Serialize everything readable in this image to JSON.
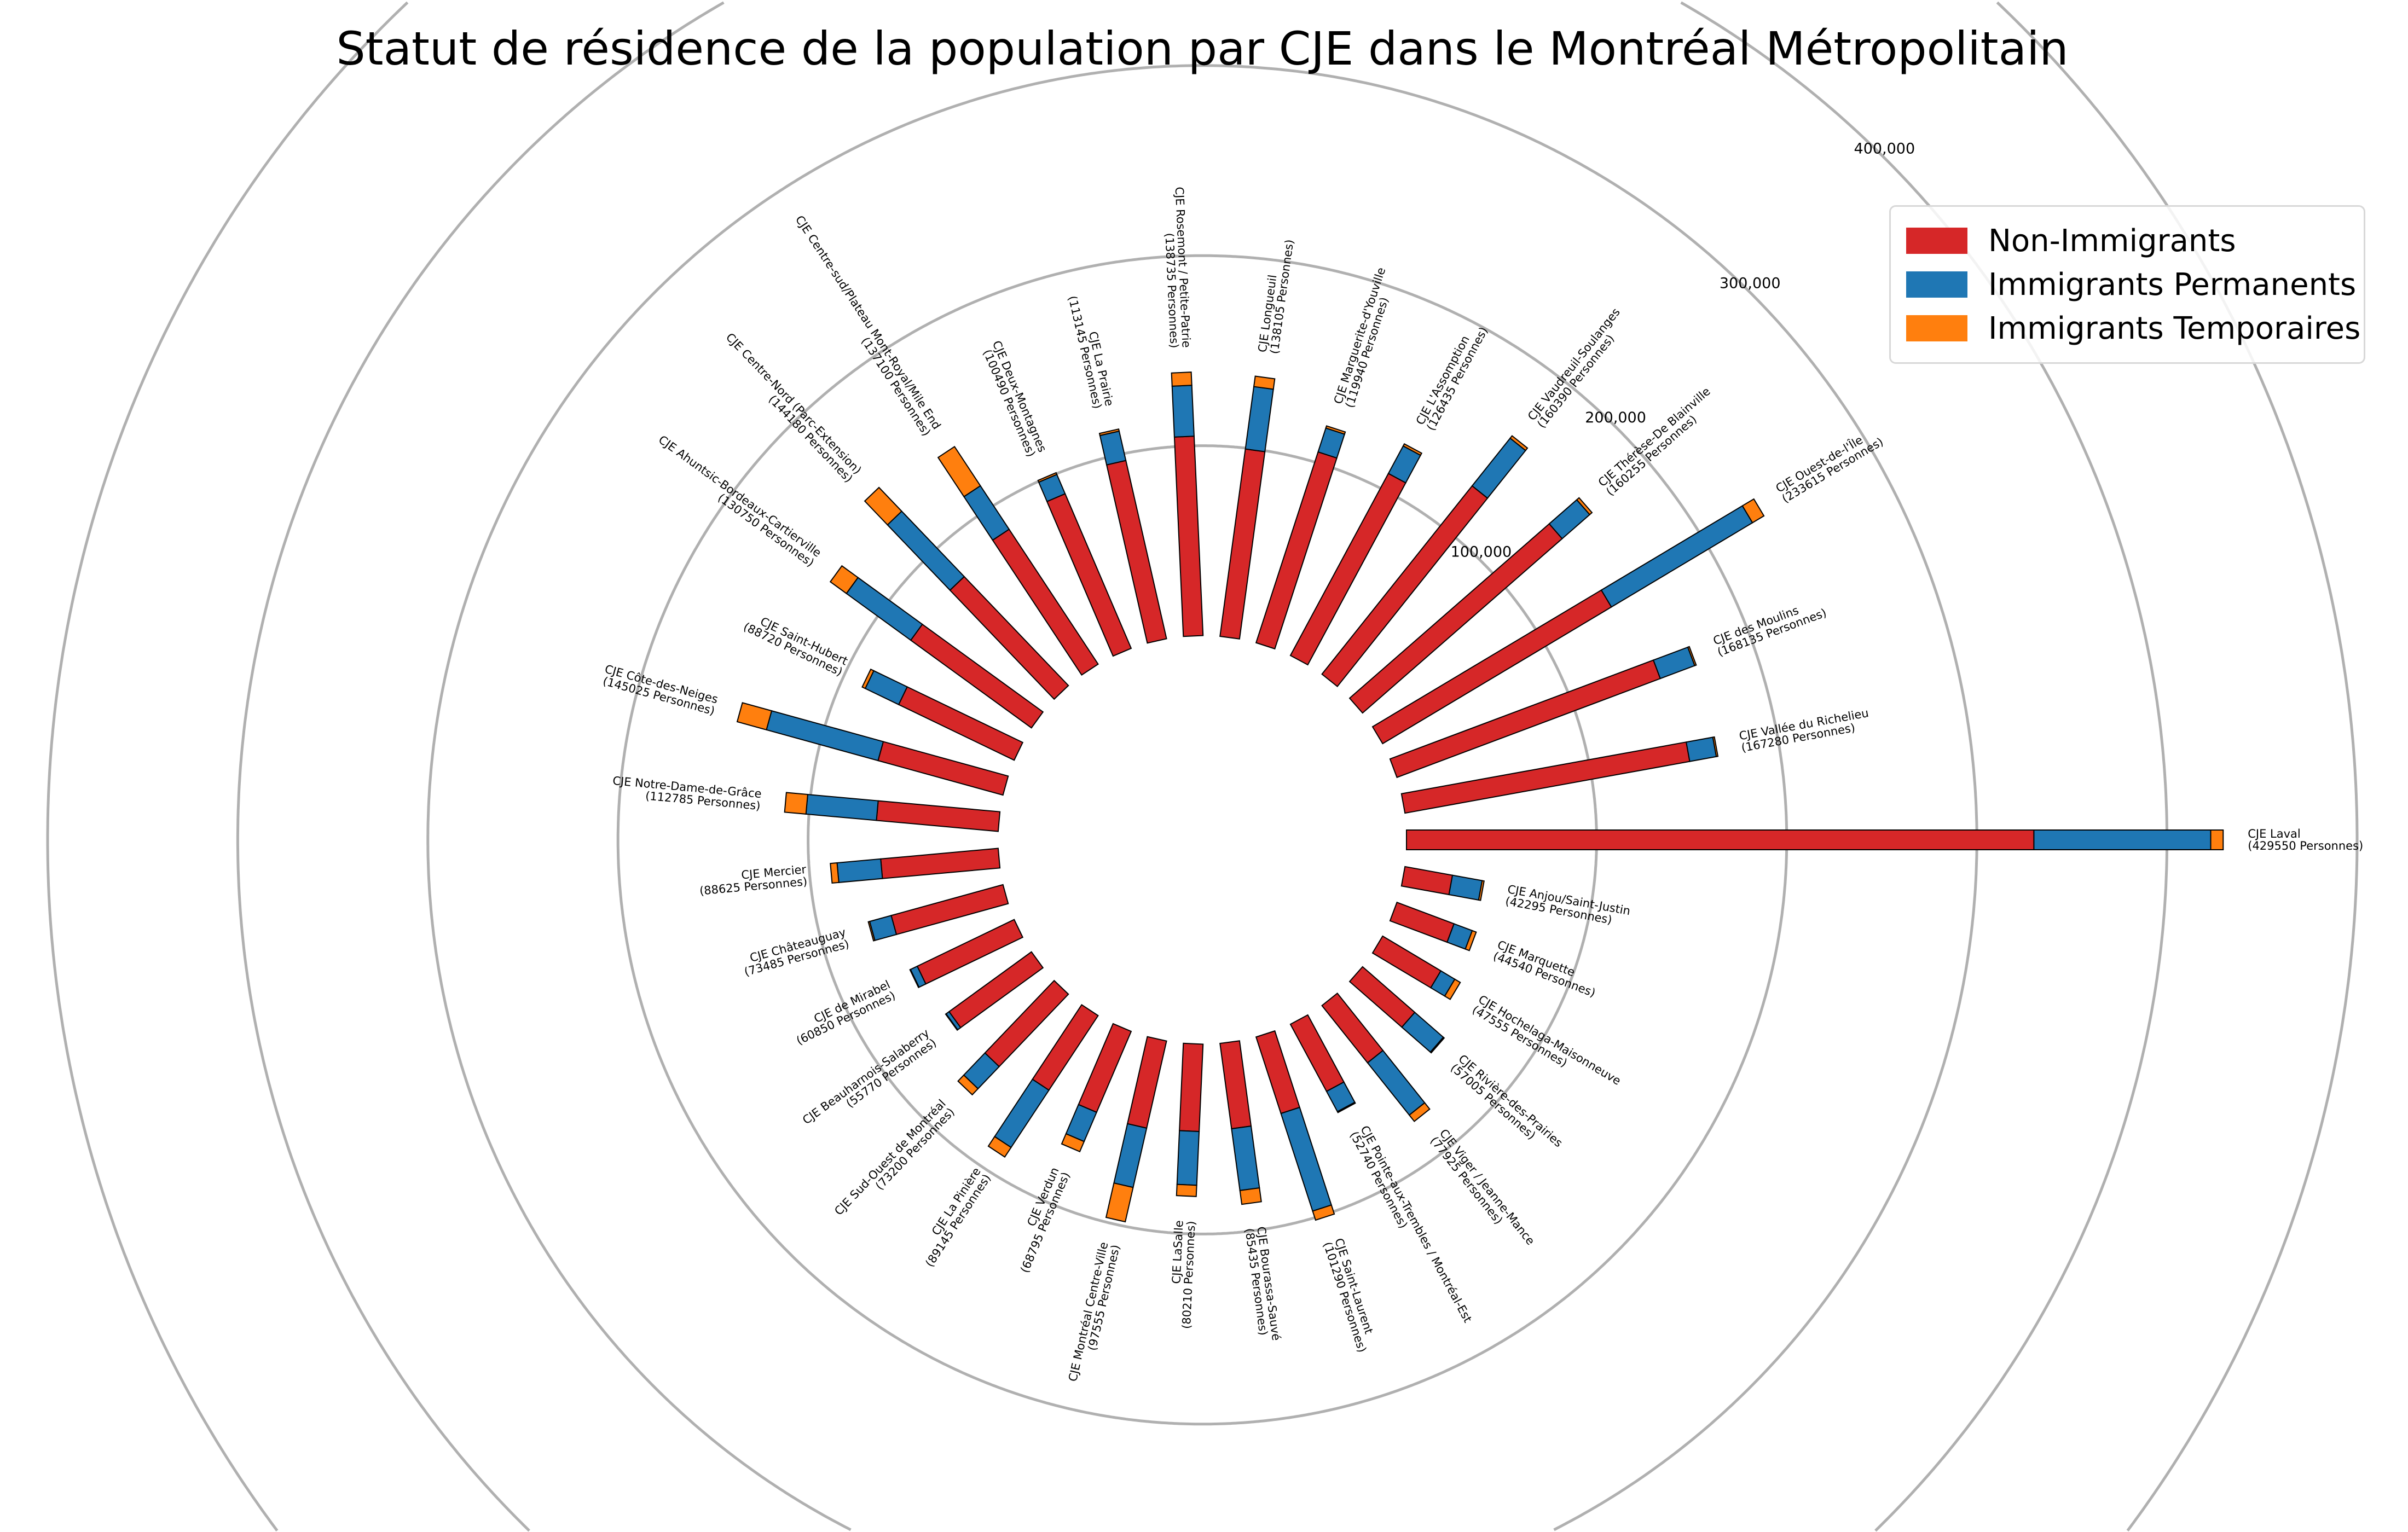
{
  "chart_data": {
    "type": "bar",
    "subtype": "circular-stacked",
    "title": "Statut de résidence de la population par CJE dans le Montréal Métropolitain",
    "radial_ticks": [
      {
        "value": 100000,
        "label": "100,000"
      },
      {
        "value": 200000,
        "label": "200,000"
      },
      {
        "value": 300000,
        "label": "300,000"
      },
      {
        "value": 400000,
        "label": "400,000"
      },
      {
        "value": 500000,
        "label": ""
      }
    ],
    "legend_position": "top-right",
    "series": [
      {
        "key": "non_immigrants",
        "name": "Non-Immigrants",
        "color": "#d62728"
      },
      {
        "key": "permanents",
        "name": "Immigrants Permanents",
        "color": "#1f77b4"
      },
      {
        "key": "temporaires",
        "name": "Immigrants Temporaires",
        "color": "#ff7f0e"
      }
    ],
    "categories": [
      {
        "name": "CJE Laval",
        "count_label": "(429550 Personnes)",
        "total": 429550,
        "non_immigrants": 330000,
        "permanents": 93000,
        "temporaires": 6550
      },
      {
        "name": "CJE Anjou/Saint-Justin",
        "count_label": "(42295 Personnes)",
        "total": 42295,
        "non_immigrants": 25400,
        "permanents": 15850,
        "temporaires": 1045
      },
      {
        "name": "CJE Marquette",
        "count_label": "(44540 Personnes)",
        "total": 44540,
        "non_immigrants": 32070,
        "permanents": 10240,
        "temporaires": 2230
      },
      {
        "name": "CJE Hochelaga-Maisonneuve",
        "count_label": "(47555 Personnes)",
        "total": 47555,
        "non_immigrants": 35665,
        "permanents": 8560,
        "temporaires": 3330
      },
      {
        "name": "CJE Rivière-des-Prairies",
        "count_label": "(57005 Personnes)",
        "total": 57005,
        "non_immigrants": 36480,
        "permanents": 19950,
        "temporaires": 575
      },
      {
        "name": "CJE Viger / Jeanne-Mance",
        "count_label": "(77925 Personnes)",
        "total": 77925,
        "non_immigrants": 38500,
        "permanents": 35200,
        "temporaires": 4225
      },
      {
        "name": "CJE Pointe-aux-Trembles / Montréal-Est",
        "count_label": "(52740 Personnes)",
        "total": 52740,
        "non_immigrants": 40100,
        "permanents": 12100,
        "temporaires": 540
      },
      {
        "name": "CJE Saint-Laurent",
        "count_label": "(101290 Personnes)",
        "total": 101290,
        "non_immigrants": 42300,
        "permanents": 54000,
        "temporaires": 4990
      },
      {
        "name": "CJE Bourassa-Sauvé",
        "count_label": "(85435 Personnes)",
        "total": 85435,
        "non_immigrants": 45300,
        "permanents": 32800,
        "temporaires": 7335
      },
      {
        "name": "CJE LaSalle",
        "count_label": "(80210 Personnes)",
        "total": 80210,
        "non_immigrants": 46000,
        "permanents": 28300,
        "temporaires": 5910
      },
      {
        "name": "CJE Montréal Centre-Ville",
        "count_label": "(97555 Personnes)",
        "total": 97555,
        "non_immigrants": 47000,
        "permanents": 32000,
        "temporaires": 18555
      },
      {
        "name": "CJE Verdun",
        "count_label": "(68795 Personnes)",
        "total": 68795,
        "non_immigrants": 46300,
        "permanents": 16700,
        "temporaires": 5795
      },
      {
        "name": "CJE La Pinière",
        "count_label": "(89145 Personnes)",
        "total": 89145,
        "non_immigrants": 47000,
        "permanents": 36100,
        "temporaires": 6045
      },
      {
        "name": "CJE Sud-Ouest de Montréal",
        "count_label": "(73200 Personnes)",
        "total": 73200,
        "non_immigrants": 52700,
        "permanents": 16105,
        "temporaires": 4395
      },
      {
        "name": "CJE Beauharnois-Salaberry",
        "count_label": "(55770 Personnes)",
        "total": 55770,
        "non_immigrants": 53540,
        "permanents": 1950,
        "temporaires": 280
      },
      {
        "name": "CJE de Mirabel",
        "count_label": "(60850 Personnes)",
        "total": 60850,
        "non_immigrants": 56590,
        "permanents": 3955,
        "temporaires": 305
      },
      {
        "name": "CJE Châteauguay",
        "count_label": "(73485 Personnes)",
        "total": 73485,
        "non_immigrants": 60990,
        "permanents": 11760,
        "temporaires": 735
      },
      {
        "name": "CJE Mercier",
        "count_label": "(88625 Personnes)",
        "total": 88625,
        "non_immigrants": 62040,
        "permanents": 23040,
        "temporaires": 3545
      },
      {
        "name": "CJE Notre-Dame-de-Grâce",
        "count_label": "(112785 Personnes)",
        "total": 112785,
        "non_immigrants": 64290,
        "permanents": 37220,
        "temporaires": 11275
      },
      {
        "name": "CJE Côte-des-Neiges",
        "count_label": "(145025 Personnes)",
        "total": 145025,
        "non_immigrants": 68160,
        "permanents": 60910,
        "temporaires": 15955
      },
      {
        "name": "CJE Saint-Hubert",
        "count_label": "(88720 Personnes)",
        "total": 88720,
        "non_immigrants": 67430,
        "permanents": 19520,
        "temporaires": 1770
      },
      {
        "name": "CJE Ahuntsic-Bordeaux-Cartierville",
        "count_label": "(130750 Personnes)",
        "total": 130750,
        "non_immigrants": 78450,
        "permanents": 41840,
        "temporaires": 10460
      },
      {
        "name": "CJE Centre-Nord (Parc-Extension)",
        "count_label": "(144180 Personnes)",
        "total": 144180,
        "non_immigrants": 79300,
        "permanents": 47580,
        "temporaires": 17300
      },
      {
        "name": "CJE Centre-sud/Plateau Mont-Royal/Mile End",
        "count_label": "(137100 Personnes)",
        "total": 137100,
        "non_immigrants": 85000,
        "permanents": 27420,
        "temporaires": 24680
      },
      {
        "name": "CJE Deux-Montagnes",
        "count_label": "(100490 Personnes)",
        "total": 100490,
        "non_immigrants": 88430,
        "permanents": 11055,
        "temporaires": 1005
      },
      {
        "name": "CJE La Prairie",
        "count_label": "(113145 Personnes)",
        "total": 113145,
        "non_immigrants": 96170,
        "permanents": 15840,
        "temporaires": 1135
      },
      {
        "name": "CJE Rosemont / Petite-Patrie",
        "count_label": "(138735 Personnes)",
        "total": 138735,
        "non_immigrants": 105000,
        "permanents": 26800,
        "temporaires": 6935
      },
      {
        "name": "CJE Longueuil",
        "count_label": "(138105 Personnes)",
        "total": 138105,
        "non_immigrants": 99435,
        "permanents": 33145,
        "temporaires": 5525
      },
      {
        "name": "CJE Marguerite-d'Youville",
        "count_label": "(119940 Personnes)",
        "total": 119940,
        "non_immigrants": 105550,
        "permanents": 13190,
        "temporaires": 1200
      },
      {
        "name": "CJE L'Assomption",
        "count_label": "(126435 Personnes)",
        "total": 126435,
        "non_immigrants": 108735,
        "permanents": 16435,
        "temporaires": 1265
      },
      {
        "name": "CJE Vaudreuil-Soulanges",
        "count_label": "(160390 Personnes)",
        "total": 160390,
        "non_immigrants": 126710,
        "permanents": 32080,
        "temporaires": 1600
      },
      {
        "name": "CJE Thérèse-De Blainville",
        "count_label": "(160255 Personnes)",
        "total": 160255,
        "non_immigrants": 139420,
        "permanents": 19230,
        "temporaires": 1605
      },
      {
        "name": "CJE Ouest-de-l'Île",
        "count_label": "(233615 Personnes)",
        "total": 233615,
        "non_immigrants": 140170,
        "permanents": 86440,
        "temporaires": 7005
      },
      {
        "name": "CJE des Moulins",
        "count_label": "(168135 Personnes)",
        "total": 168135,
        "non_immigrants": 147960,
        "permanents": 19335,
        "temporaires": 840
      },
      {
        "name": "CJE Vallée du Richelieu",
        "count_label": "(167280 Personnes)",
        "total": 167280,
        "non_immigrants": 152225,
        "permanents": 14220,
        "temporaires": 835
      }
    ]
  }
}
